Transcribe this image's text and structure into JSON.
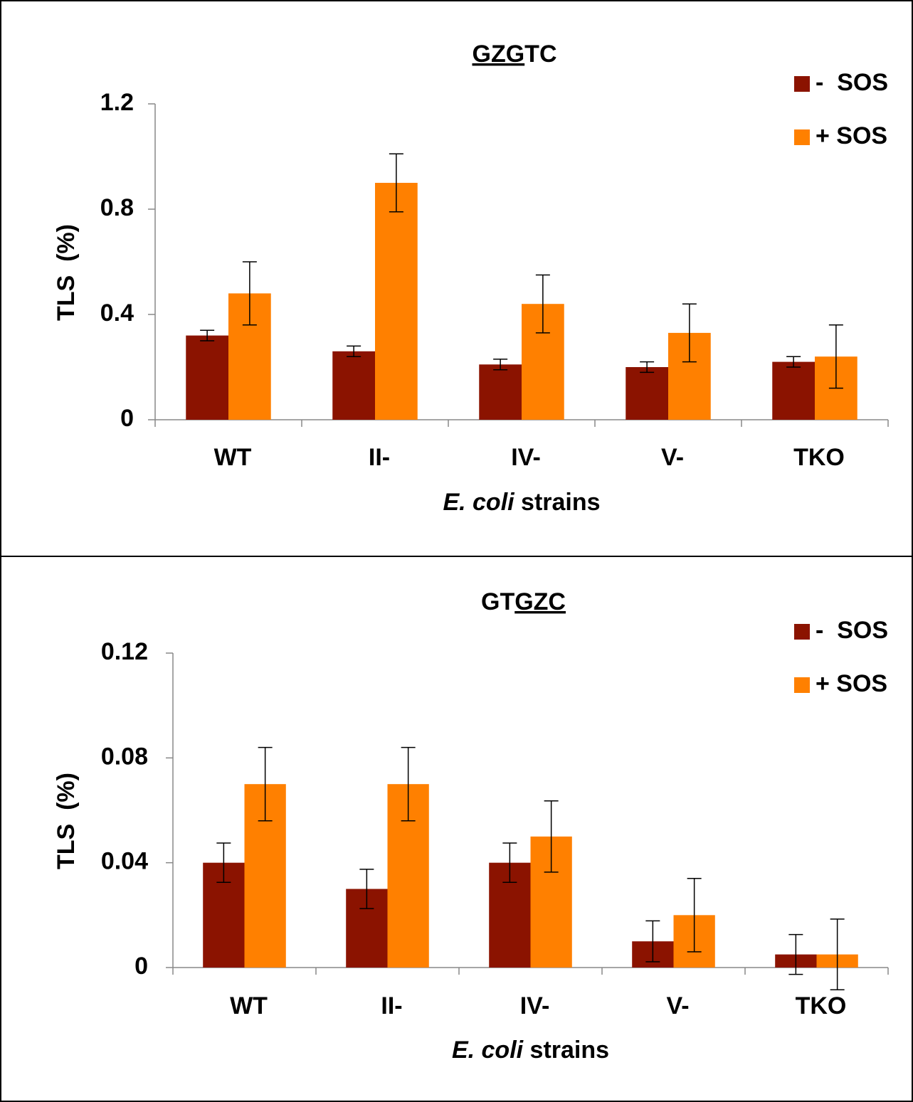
{
  "chart_data": [
    {
      "type": "bar",
      "title": [
        {
          "text": "GZG",
          "underline": true
        },
        {
          "text": "TC",
          "underline": false
        }
      ],
      "y_label": "TLS  (%)",
      "x_label": [
        {
          "text": "E. coli",
          "italic": true
        },
        {
          "text": " strains",
          "italic": false
        }
      ],
      "categories": [
        "WT",
        "II-",
        "IV-",
        "V-",
        "TKO"
      ],
      "series": [
        {
          "name": "-  SOS",
          "color": "#8b1300",
          "values": [
            0.32,
            0.26,
            0.21,
            0.2,
            0.22
          ],
          "errors": [
            0.02,
            0.02,
            0.02,
            0.02,
            0.02
          ]
        },
        {
          "name": "+ SOS",
          "color": "#ff8000",
          "values": [
            0.48,
            0.9,
            0.44,
            0.33,
            0.24
          ],
          "errors": [
            0.12,
            0.11,
            0.11,
            0.11,
            0.12
          ]
        }
      ],
      "ylim": [
        0,
        1.2
      ],
      "yticks": [
        0,
        0.4,
        0.8,
        1.2
      ],
      "grid": false,
      "legend": "top-right"
    },
    {
      "type": "bar",
      "title": [
        {
          "text": "GT",
          "underline": false
        },
        {
          "text": "GZC",
          "underline": true
        }
      ],
      "y_label": "TLS  (%)",
      "x_label": [
        {
          "text": "E. coli",
          "italic": true
        },
        {
          "text": " strains",
          "italic": false
        }
      ],
      "categories": [
        "WT",
        "II-",
        "IV-",
        "V-",
        "TKO"
      ],
      "series": [
        {
          "name": "-  SOS",
          "color": "#8b1300",
          "values": [
            0.04,
            0.03,
            0.04,
            0.01,
            0.005
          ],
          "errors": [
            0.0075,
            0.0075,
            0.0075,
            0.0078,
            0.0076
          ]
        },
        {
          "name": "+ SOS",
          "color": "#ff8000",
          "values": [
            0.07,
            0.07,
            0.05,
            0.02,
            0.005
          ],
          "errors": [
            0.014,
            0.014,
            0.0136,
            0.014,
            0.0135
          ]
        }
      ],
      "ylim": [
        0,
        0.12
      ],
      "yticks": [
        0,
        0.04,
        0.08,
        0.12
      ],
      "grid": false,
      "legend": "top-right"
    }
  ]
}
